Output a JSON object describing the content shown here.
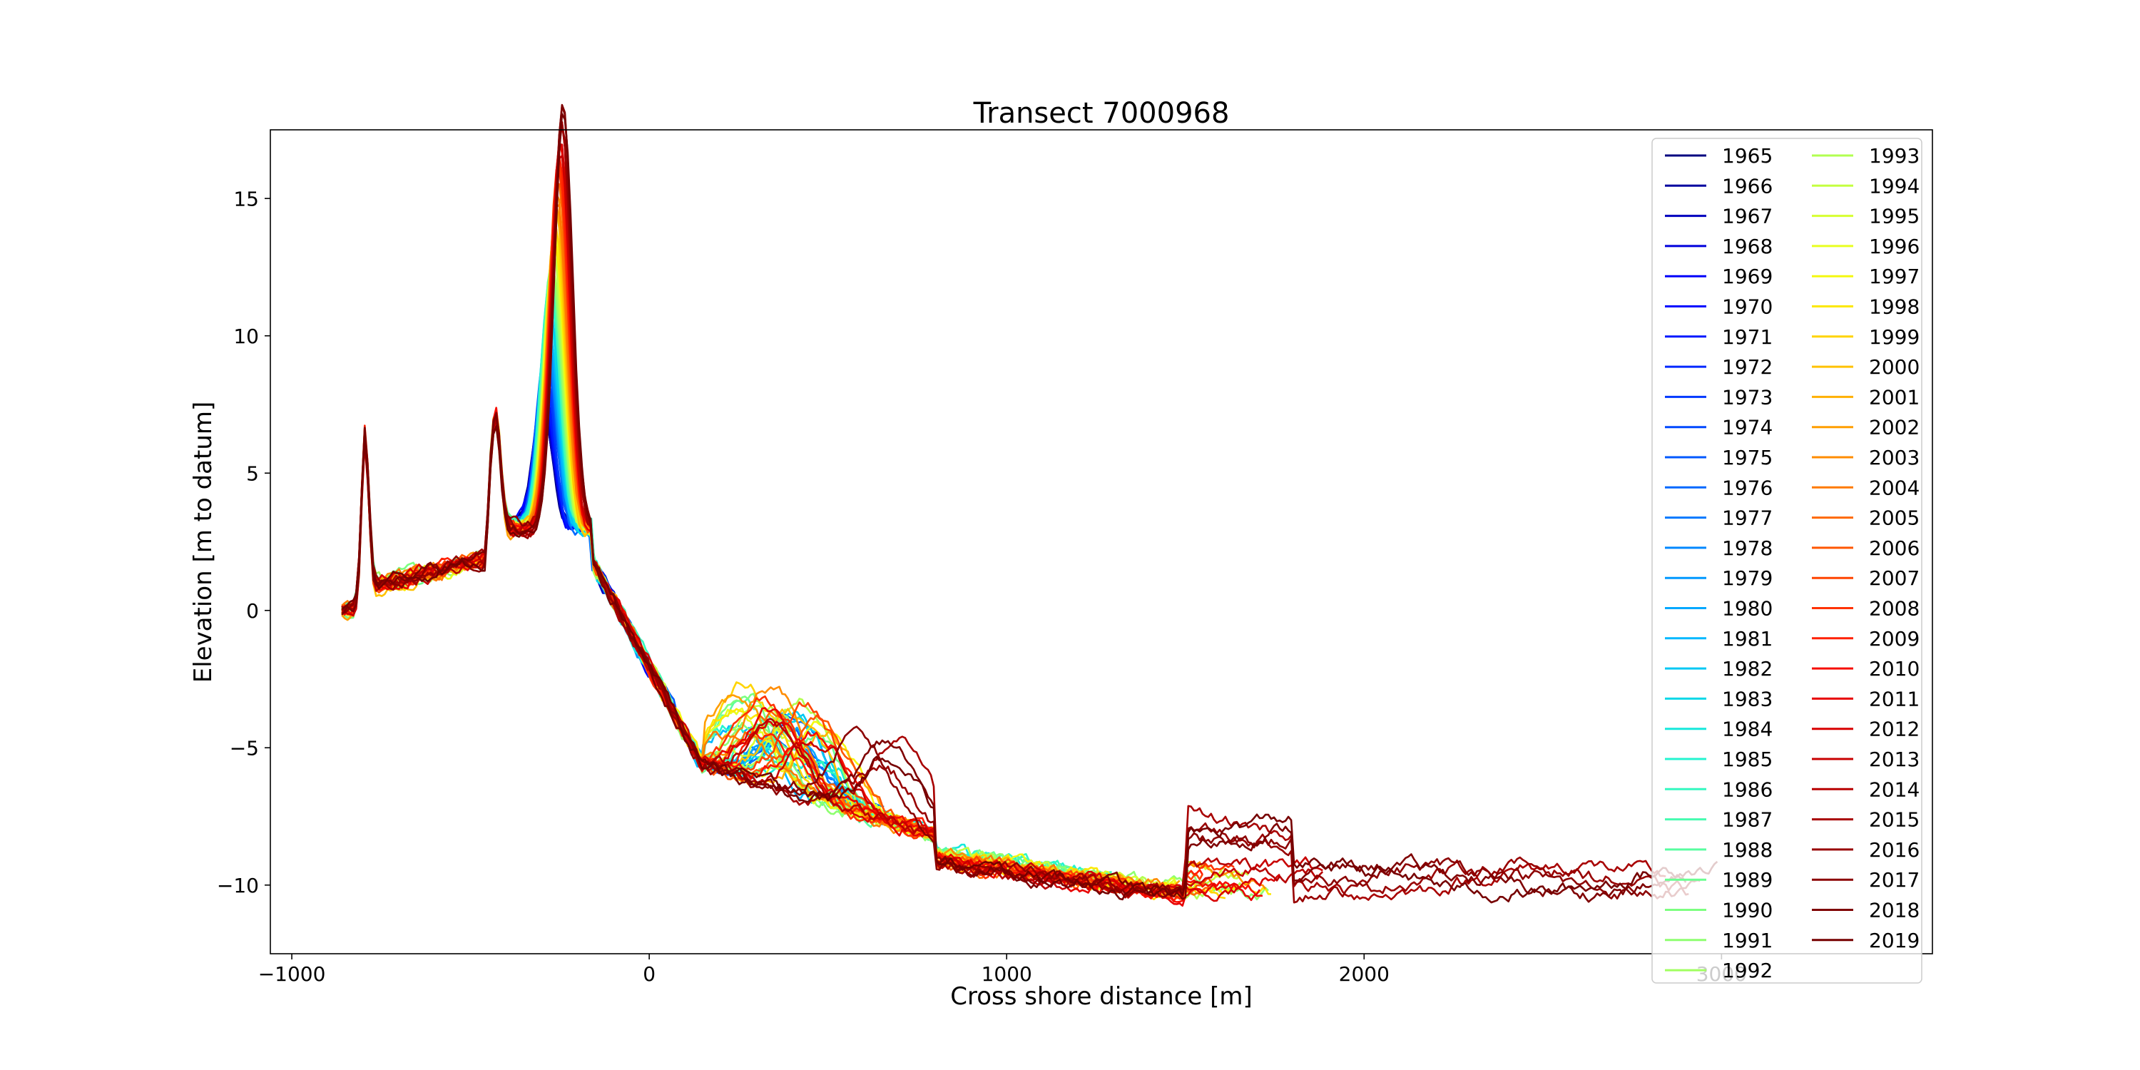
{
  "chart_data": {
    "type": "line",
    "title": "Transect 7000968",
    "xlabel": "Cross shore distance [m]",
    "ylabel": "Elevation [m to datum]",
    "xlim": [
      -1060,
      3590
    ],
    "ylim": [
      -12.5,
      17.5
    ],
    "x_ticks": [
      -1000,
      0,
      1000,
      2000,
      3000
    ],
    "y_ticks": [
      -10,
      -5,
      0,
      5,
      10,
      15
    ],
    "grid": false,
    "legend_position": "top-right",
    "legend_columns": 2,
    "colormap": "jet",
    "series": [
      {
        "name": "1965",
        "color": "#00007f"
      },
      {
        "name": "1966",
        "color": "#00009f"
      },
      {
        "name": "1967",
        "color": "#0000bd"
      },
      {
        "name": "1968",
        "color": "#0000dc"
      },
      {
        "name": "1969",
        "color": "#0000fa"
      },
      {
        "name": "1970",
        "color": "#0008ff"
      },
      {
        "name": "1971",
        "color": "#0018ff"
      },
      {
        "name": "1972",
        "color": "#0028ff"
      },
      {
        "name": "1973",
        "color": "#0038ff"
      },
      {
        "name": "1974",
        "color": "#0048ff"
      },
      {
        "name": "1975",
        "color": "#0058ff"
      },
      {
        "name": "1976",
        "color": "#0068ff"
      },
      {
        "name": "1977",
        "color": "#0078ff"
      },
      {
        "name": "1978",
        "color": "#0088ff"
      },
      {
        "name": "1979",
        "color": "#0098ff"
      },
      {
        "name": "1980",
        "color": "#00a8ff"
      },
      {
        "name": "1981",
        "color": "#00b8ff"
      },
      {
        "name": "1982",
        "color": "#00c8f4"
      },
      {
        "name": "1983",
        "color": "#0ad8e8"
      },
      {
        "name": "1984",
        "color": "#16e8dc"
      },
      {
        "name": "1985",
        "color": "#24f4d0"
      },
      {
        "name": "1986",
        "color": "#34f8c0"
      },
      {
        "name": "1987",
        "color": "#46fbb0"
      },
      {
        "name": "1988",
        "color": "#58fda0"
      },
      {
        "name": "1989",
        "color": "#6aff90"
      },
      {
        "name": "1990",
        "color": "#7cff80"
      },
      {
        "name": "1991",
        "color": "#8eff70"
      },
      {
        "name": "1992",
        "color": "#a0ff60"
      },
      {
        "name": "1993",
        "color": "#b2ff50"
      },
      {
        "name": "1994",
        "color": "#c4ff40"
      },
      {
        "name": "1995",
        "color": "#d6ff30"
      },
      {
        "name": "1996",
        "color": "#e8ff20"
      },
      {
        "name": "1997",
        "color": "#f4f810"
      },
      {
        "name": "1998",
        "color": "#fce800"
      },
      {
        "name": "1999",
        "color": "#ffd400"
      },
      {
        "name": "2000",
        "color": "#ffc200"
      },
      {
        "name": "2001",
        "color": "#ffb000"
      },
      {
        "name": "2002",
        "color": "#ff9e00"
      },
      {
        "name": "2003",
        "color": "#ff8c00"
      },
      {
        "name": "2004",
        "color": "#ff7a00"
      },
      {
        "name": "2005",
        "color": "#ff6800"
      },
      {
        "name": "2006",
        "color": "#ff5600"
      },
      {
        "name": "2007",
        "color": "#ff4400"
      },
      {
        "name": "2008",
        "color": "#ff3200"
      },
      {
        "name": "2009",
        "color": "#ff2000"
      },
      {
        "name": "2010",
        "color": "#f60e00"
      },
      {
        "name": "2011",
        "color": "#e80000"
      },
      {
        "name": "2012",
        "color": "#d80000"
      },
      {
        "name": "2013",
        "color": "#c80000"
      },
      {
        "name": "2014",
        "color": "#b80000"
      },
      {
        "name": "2015",
        "color": "#a80000"
      },
      {
        "name": "2016",
        "color": "#980000"
      },
      {
        "name": "2017",
        "color": "#8c0000"
      },
      {
        "name": "2018",
        "color": "#7f0000"
      },
      {
        "name": "2019",
        "color": "#760000"
      }
    ]
  }
}
